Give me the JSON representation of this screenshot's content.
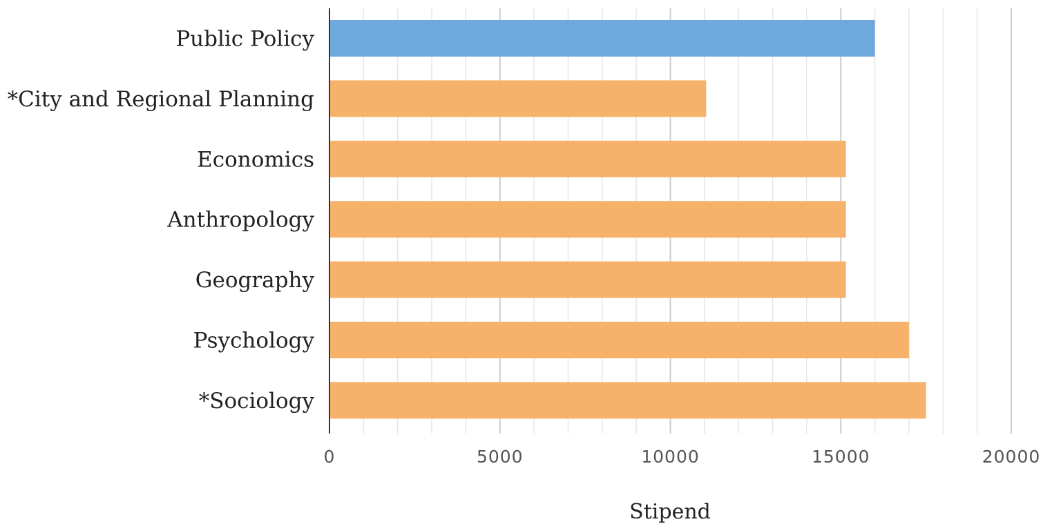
{
  "chart_data": {
    "type": "bar",
    "orientation": "horizontal",
    "categories": [
      "Public Policy",
      "*City and Regional Planning",
      "Economics",
      "Anthropology",
      "Geography",
      "Psychology",
      "*Sociology"
    ],
    "values": [
      16000,
      11050,
      15150,
      15150,
      15150,
      17000,
      17500
    ],
    "bar_colors": [
      "#6fa8dc",
      "#f6b26b",
      "#f6b26b",
      "#f6b26b",
      "#f6b26b",
      "#f6b26b",
      "#f6b26b"
    ],
    "xlabel": "Stipend",
    "ylabel": "",
    "title": "",
    "xlim": [
      0,
      20000
    ],
    "xticks": [
      "0",
      "5000",
      "10000",
      "15000",
      "20000"
    ],
    "major_tick_step": 5000,
    "minor_tick_step": 1000,
    "grid": "vertical",
    "legend": "none"
  }
}
